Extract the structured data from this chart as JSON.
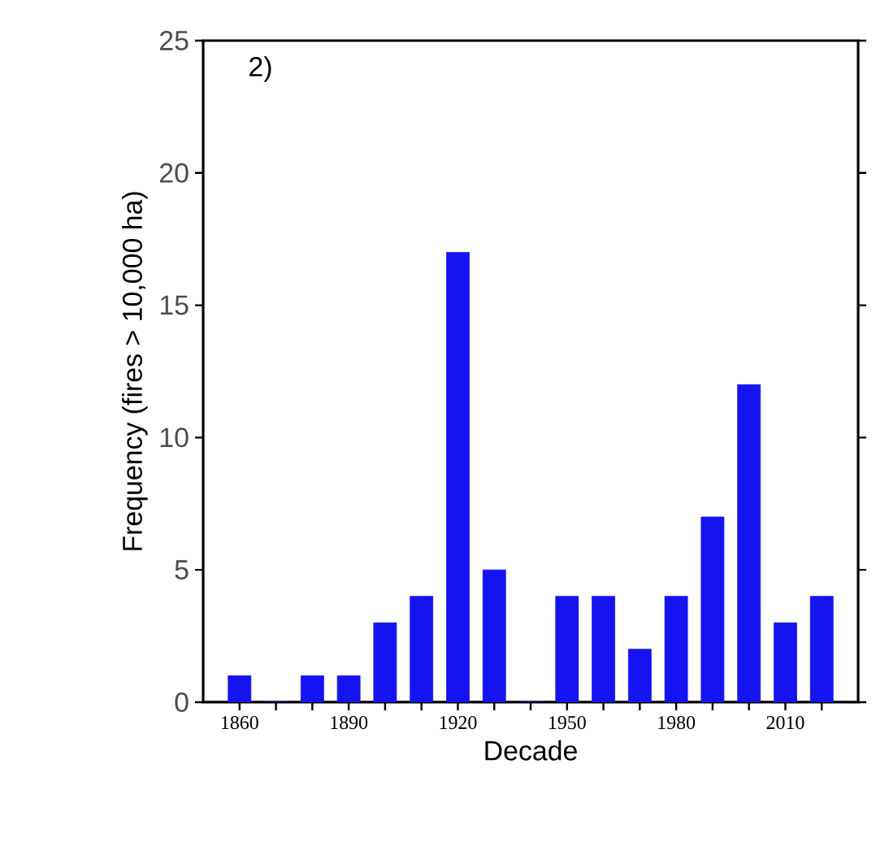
{
  "chart_data": {
    "type": "bar",
    "categories": [
      "1860",
      null,
      null,
      "1890",
      null,
      null,
      "1920",
      null,
      null,
      "1950",
      null,
      null,
      "1980",
      null,
      null,
      "2010",
      null
    ],
    "values": [
      1,
      0,
      1,
      1,
      3,
      4,
      17,
      5,
      0,
      4,
      4,
      2,
      4,
      7,
      12,
      3,
      4
    ],
    "color": "#1414f0",
    "xlabel": "Decade",
    "ylabel": "Frequency (fires > 10,000 ha)",
    "ylim": [
      0,
      25
    ],
    "yticks": [
      0,
      5,
      10,
      15,
      20,
      25
    ],
    "annotations": [
      "2)"
    ],
    "grid": false
  }
}
